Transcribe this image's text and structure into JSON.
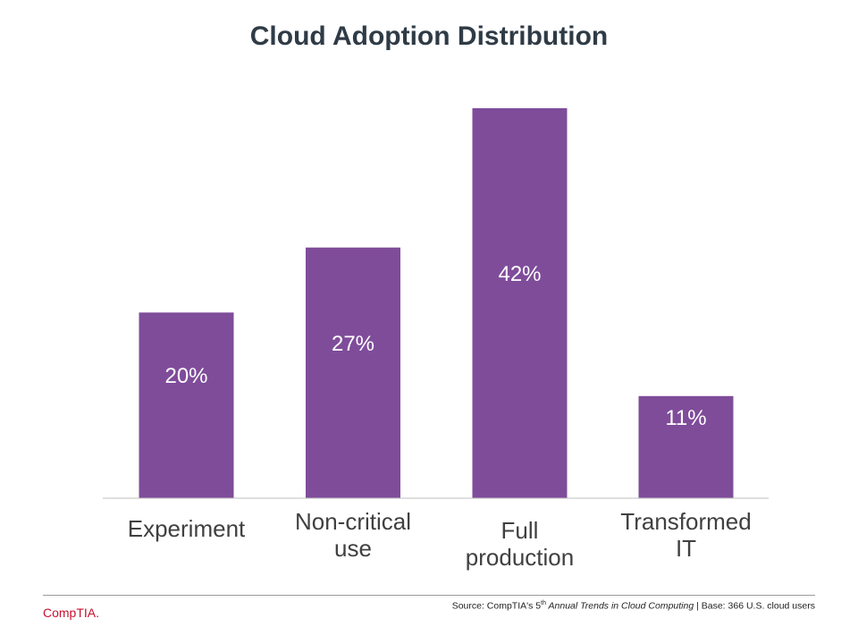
{
  "chart_data": {
    "type": "bar",
    "title": "Cloud Adoption Distribution",
    "categories": [
      [
        "Experiment"
      ],
      [
        "Non-critical",
        "use"
      ],
      [
        "Full",
        "production"
      ],
      [
        "Transformed",
        "IT"
      ]
    ],
    "values": [
      20,
      27,
      42,
      11
    ],
    "value_labels": [
      "20%",
      "27%",
      "42%",
      "11%"
    ],
    "unit": "%",
    "ylim": [
      0,
      42
    ],
    "bar_color": "#7f4c9a",
    "xlabel": "",
    "ylabel": "",
    "grid": false
  },
  "footer": {
    "brand": "CompTIA.",
    "source_prefix": "Source: CompTIA's 5",
    "source_sup": "th",
    "source_italic": " Annual Trends in Cloud Computing",
    "source_suffix": " | Base: 366 U.S. cloud users"
  }
}
